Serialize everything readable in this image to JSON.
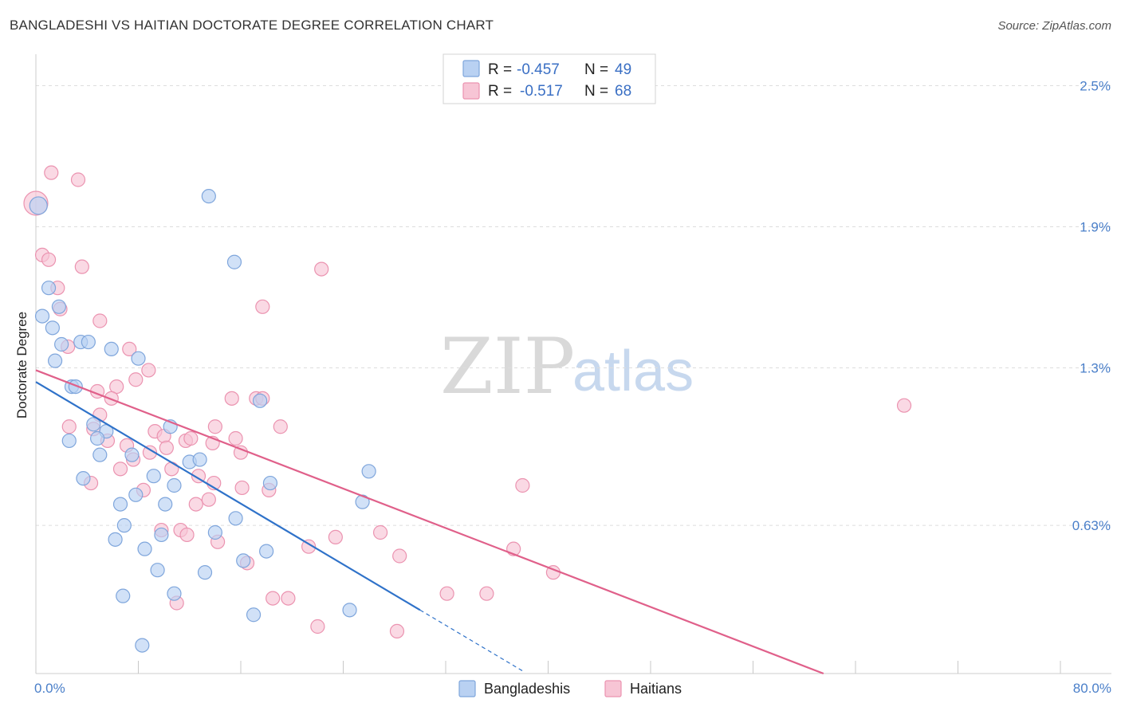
{
  "title": "BANGLADESHI VS HAITIAN DOCTORATE DEGREE CORRELATION CHART",
  "source": "Source: ZipAtlas.com",
  "watermark": {
    "zip": "ZIP",
    "atlas": "atlas"
  },
  "colors": {
    "blue_fill": "#b9d1f2",
    "blue_stroke": "#7fa6dc",
    "blue_line": "#2f72c9",
    "pink_fill": "#f7c5d5",
    "pink_stroke": "#eb93b0",
    "pink_line": "#e0608a",
    "tick_color": "#4a7fc9",
    "grid": "#dddddd"
  },
  "legend": {
    "rows": [
      {
        "r_label": "R =",
        "r_value": "-0.457",
        "n_label": "N =",
        "n_value": "49"
      },
      {
        "r_label": "R =",
        "r_value": "-0.517",
        "n_label": "N =",
        "n_value": "68"
      }
    ]
  },
  "chart_data": {
    "type": "scatter",
    "title": "BANGLADESHI VS HAITIAN DOCTORATE DEGREE CORRELATION CHART",
    "xlabel": "",
    "ylabel": "Doctorate Degree",
    "xlim": [
      0,
      80
    ],
    "ylim": [
      0,
      2.6
    ],
    "x_tick_labels": [
      "0.0%",
      "80.0%"
    ],
    "y_ticks": [
      0.63,
      1.3,
      1.9,
      2.5
    ],
    "y_tick_labels": [
      "0.63%",
      "1.3%",
      "1.9%",
      "2.5%"
    ],
    "legend_position": "top-center",
    "series": [
      {
        "name": "Bangladeshis",
        "trend": {
          "x0": 0,
          "y0": 1.24,
          "x1": 30,
          "y1": 0.27,
          "dash_to_x": 38
        },
        "points": [
          [
            0.2,
            1.99
          ],
          [
            13.5,
            2.03
          ],
          [
            15.5,
            1.75
          ],
          [
            1.0,
            1.64
          ],
          [
            0.5,
            1.52
          ],
          [
            1.8,
            1.56
          ],
          [
            1.3,
            1.47
          ],
          [
            2.0,
            1.4
          ],
          [
            1.5,
            1.33
          ],
          [
            3.5,
            1.41
          ],
          [
            4.1,
            1.41
          ],
          [
            5.9,
            1.38
          ],
          [
            8.0,
            1.34
          ],
          [
            2.8,
            1.22
          ],
          [
            3.1,
            1.22
          ],
          [
            4.5,
            1.06
          ],
          [
            5.5,
            1.03
          ],
          [
            2.6,
            0.99
          ],
          [
            4.8,
            1.0
          ],
          [
            10.5,
            1.05
          ],
          [
            5.0,
            0.93
          ],
          [
            7.5,
            0.93
          ],
          [
            12.0,
            0.9
          ],
          [
            12.8,
            0.91
          ],
          [
            3.7,
            0.83
          ],
          [
            9.2,
            0.84
          ],
          [
            10.8,
            0.8
          ],
          [
            18.3,
            0.81
          ],
          [
            26.0,
            0.86
          ],
          [
            17.5,
            1.16
          ],
          [
            6.6,
            0.72
          ],
          [
            7.8,
            0.76
          ],
          [
            10.1,
            0.72
          ],
          [
            6.9,
            0.63
          ],
          [
            14.0,
            0.6
          ],
          [
            15.6,
            0.66
          ],
          [
            6.2,
            0.57
          ],
          [
            9.8,
            0.59
          ],
          [
            8.5,
            0.53
          ],
          [
            16.2,
            0.48
          ],
          [
            18.0,
            0.52
          ],
          [
            9.5,
            0.44
          ],
          [
            13.2,
            0.43
          ],
          [
            6.8,
            0.33
          ],
          [
            10.8,
            0.34
          ],
          [
            17.0,
            0.25
          ],
          [
            24.5,
            0.27
          ],
          [
            8.3,
            0.12
          ],
          [
            25.5,
            0.73
          ]
        ]
      },
      {
        "name": "Haitians",
        "trend": {
          "x0": 0,
          "y0": 1.29,
          "x1": 61.5,
          "y1": 0.0
        },
        "points": [
          [
            0.0,
            2.0
          ],
          [
            1.2,
            2.13
          ],
          [
            3.3,
            2.1
          ],
          [
            0.5,
            1.78
          ],
          [
            1.0,
            1.76
          ],
          [
            3.6,
            1.73
          ],
          [
            22.3,
            1.72
          ],
          [
            1.7,
            1.64
          ],
          [
            1.9,
            1.55
          ],
          [
            5.0,
            1.5
          ],
          [
            17.7,
            1.56
          ],
          [
            2.5,
            1.39
          ],
          [
            7.3,
            1.38
          ],
          [
            8.8,
            1.29
          ],
          [
            7.8,
            1.25
          ],
          [
            6.3,
            1.22
          ],
          [
            4.8,
            1.2
          ],
          [
            5.9,
            1.17
          ],
          [
            15.3,
            1.17
          ],
          [
            17.2,
            1.17
          ],
          [
            17.7,
            1.17
          ],
          [
            67.8,
            1.14
          ],
          [
            2.6,
            1.05
          ],
          [
            4.5,
            1.04
          ],
          [
            9.3,
            1.03
          ],
          [
            19.1,
            1.05
          ],
          [
            5.6,
            0.99
          ],
          [
            10.0,
            1.01
          ],
          [
            11.7,
            0.99
          ],
          [
            12.1,
            1.0
          ],
          [
            13.8,
            0.98
          ],
          [
            15.6,
            1.0
          ],
          [
            7.1,
            0.97
          ],
          [
            7.6,
            0.91
          ],
          [
            8.9,
            0.94
          ],
          [
            16.0,
            0.94
          ],
          [
            6.6,
            0.87
          ],
          [
            10.6,
            0.87
          ],
          [
            4.3,
            0.81
          ],
          [
            12.7,
            0.84
          ],
          [
            13.9,
            0.81
          ],
          [
            16.1,
            0.79
          ],
          [
            18.2,
            0.78
          ],
          [
            8.4,
            0.78
          ],
          [
            13.5,
            0.74
          ],
          [
            12.5,
            0.72
          ],
          [
            38.0,
            0.8
          ],
          [
            9.8,
            0.61
          ],
          [
            11.3,
            0.61
          ],
          [
            11.8,
            0.59
          ],
          [
            23.4,
            0.58
          ],
          [
            26.9,
            0.6
          ],
          [
            14.2,
            0.56
          ],
          [
            21.3,
            0.54
          ],
          [
            37.3,
            0.53
          ],
          [
            28.4,
            0.5
          ],
          [
            16.5,
            0.47
          ],
          [
            40.4,
            0.43
          ],
          [
            18.5,
            0.32
          ],
          [
            19.7,
            0.32
          ],
          [
            32.1,
            0.34
          ],
          [
            35.2,
            0.34
          ],
          [
            11.0,
            0.3
          ],
          [
            22.0,
            0.2
          ],
          [
            28.2,
            0.18
          ],
          [
            14.0,
            1.05
          ],
          [
            5.0,
            1.1
          ],
          [
            10.2,
            0.96
          ]
        ]
      }
    ]
  }
}
